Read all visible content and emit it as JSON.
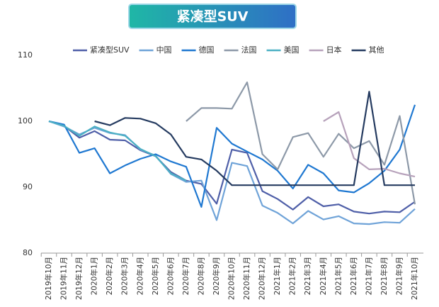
{
  "chart_data": {
    "type": "line",
    "title": "紧凑型SUV",
    "categories": [
      "2019年10月",
      "2019年11月",
      "2019年12月",
      "2020年1月",
      "2020年2月",
      "2020年3月",
      "2020年4月",
      "2020年5月",
      "2020年6月",
      "2020年7月",
      "2020年8月",
      "2020年9月",
      "2020年10月",
      "2020年11月",
      "2020年12月",
      "2021年1月",
      "2021年2月",
      "2021年3月",
      "2021年4月",
      "2021年5月",
      "2021年6月",
      "2021年7月",
      "2021年8月",
      "2021年9月",
      "2021年10月"
    ],
    "series": [
      {
        "name": "紧凑型SUV",
        "color": "#4f5fa8",
        "values": [
          100,
          99.3,
          97.5,
          98.5,
          97.2,
          97.1,
          95.6,
          94.7,
          92.3,
          91,
          90.5,
          87.5,
          95.7,
          95.2,
          89.4,
          88.2,
          86.6,
          88.5,
          87.1,
          87.4,
          86.3,
          86,
          86.3,
          86.2,
          87.8
        ]
      },
      {
        "name": "中国",
        "color": "#6fa3d8",
        "values": [
          100,
          99.2,
          98,
          99,
          98.2,
          97.9,
          95.7,
          94.8,
          92,
          90.8,
          91,
          85,
          93.7,
          93.2,
          87.2,
          86.1,
          84.5,
          86.4,
          85.1,
          85.6,
          84.5,
          84.4,
          84.7,
          84.6,
          86.7
        ]
      },
      {
        "name": "德国",
        "color": "#1f78d1",
        "values": [
          100,
          99.5,
          95.2,
          95.9,
          92.1,
          93.3,
          94.3,
          95,
          93.9,
          93.1,
          87,
          99,
          96.6,
          95.4,
          94.2,
          92.5,
          89.8,
          93.4,
          92.1,
          89.5,
          89.2,
          90.6,
          92.5,
          95.7,
          102.5
        ]
      },
      {
        "name": "法国",
        "color": "#8d99a8",
        "values": [
          null,
          null,
          null,
          null,
          null,
          null,
          null,
          null,
          null,
          100,
          102,
          102,
          101.9,
          105.9,
          95,
          92.7,
          97.6,
          98.2,
          94.6,
          98.1,
          95.9,
          97,
          93.4,
          100.8,
          87.4
        ]
      },
      {
        "name": "美国",
        "color": "#4cb0c4",
        "values": [
          100,
          99.3,
          97.8,
          99.2,
          98.3,
          97.8,
          95.8,
          94.7,
          92.1,
          91,
          null,
          null,
          null,
          null,
          null,
          null,
          null,
          null,
          null,
          null,
          null,
          null,
          null,
          null,
          null
        ]
      },
      {
        "name": "日本",
        "color": "#b7a2bb",
        "values": [
          null,
          null,
          null,
          null,
          null,
          null,
          null,
          null,
          null,
          null,
          null,
          null,
          null,
          null,
          null,
          null,
          null,
          null,
          100,
          101.4,
          94.4,
          92.7,
          92.8,
          92.1,
          91.6
        ]
      },
      {
        "name": "其他",
        "color": "#253b60",
        "values": [
          null,
          null,
          null,
          100,
          99.4,
          100.5,
          100.4,
          99.7,
          98,
          94.6,
          94.2,
          92.5,
          90.3,
          90.3,
          90.3,
          90.3,
          90.3,
          90.3,
          90.3,
          90.3,
          90.3,
          104.5,
          90.3,
          90.3,
          90.3
        ]
      }
    ],
    "ylim": [
      80,
      110
    ],
    "yticks": [
      80,
      90,
      100,
      110
    ],
    "grid": false
  }
}
